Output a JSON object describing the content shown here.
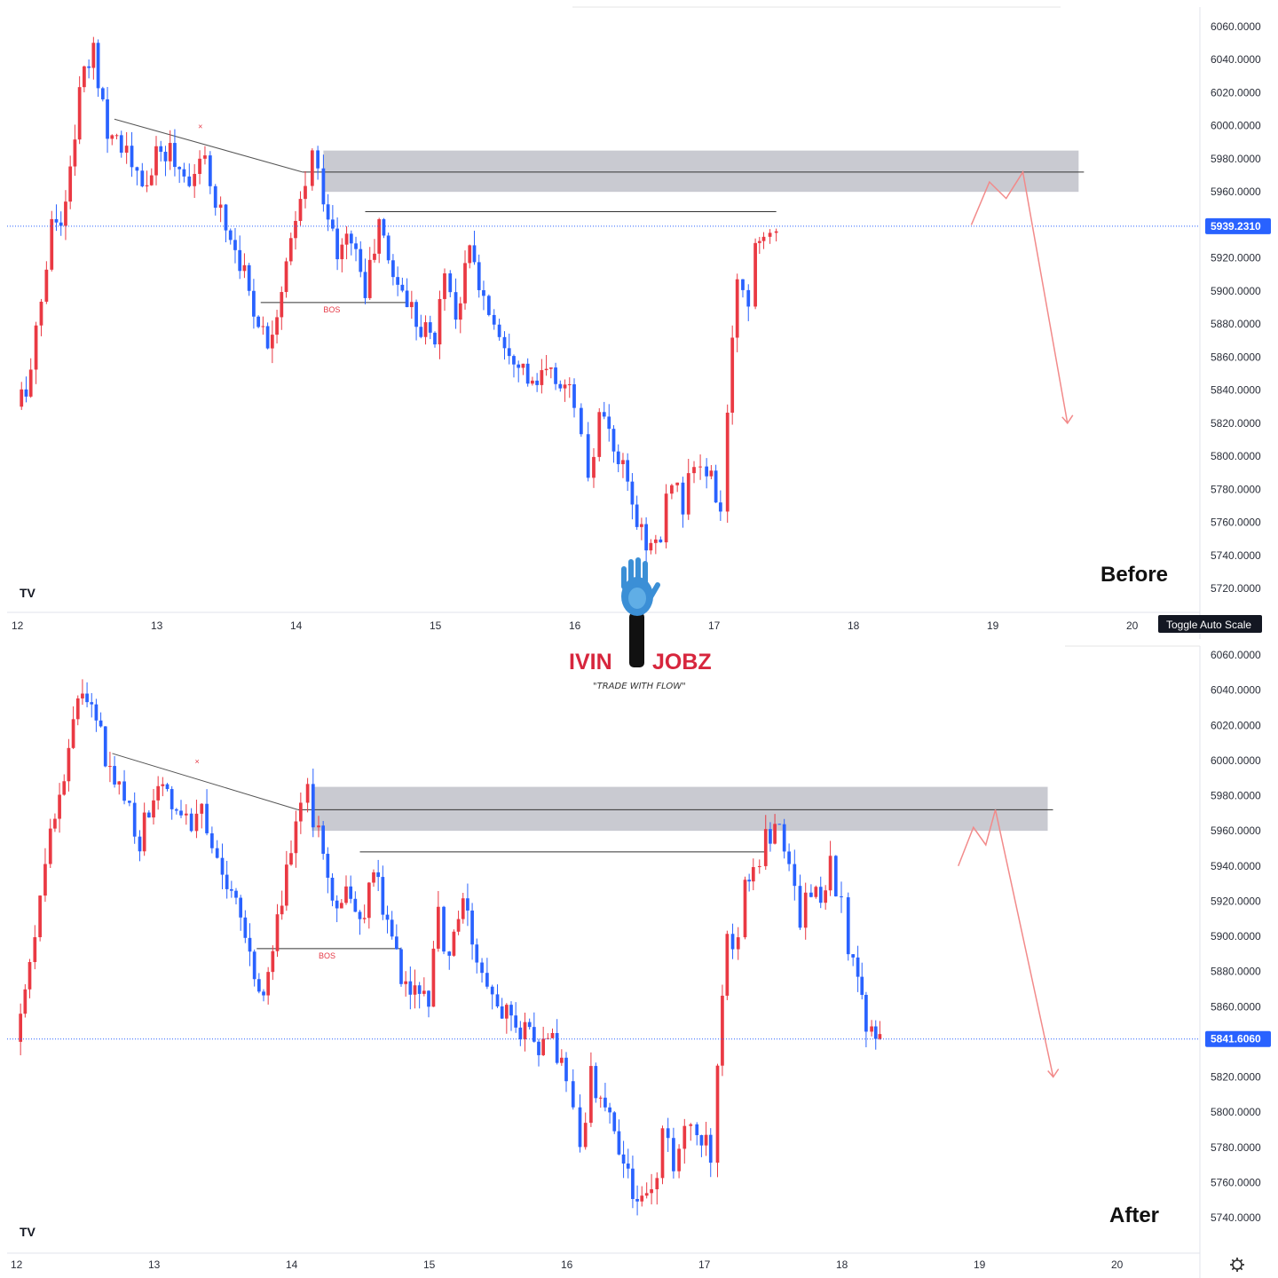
{
  "brand": {
    "name_left": "IVIN",
    "name_right": "JOBZ",
    "tagline": "\"TRADE WITH FLOW\"",
    "color": "#d7263d"
  },
  "colors": {
    "up": "#ea3943",
    "down": "#2962ff",
    "zone": "#c9cad1",
    "projection": "#f28a8a",
    "price_tag": "#2962ff"
  },
  "panels": [
    {
      "id": "before",
      "label": "Before",
      "toggle_label": "Toggle Auto Scale",
      "settings_icon": "",
      "tv_logo": "TV",
      "bos_label": "BOS",
      "cross_marker": "×",
      "current_price_label": "5939.2310",
      "current_price": 5939.231,
      "y_ticks": [
        "6060.0000",
        "6040.0000",
        "6020.0000",
        "6000.0000",
        "5980.0000",
        "5960.0000",
        "5920.0000",
        "5900.0000",
        "5880.0000",
        "5860.0000",
        "5840.0000",
        "5820.0000",
        "5800.0000",
        "5780.0000",
        "5760.0000",
        "5740.0000",
        "5720.0000"
      ],
      "x_ticks": [
        "12",
        "13",
        "14",
        "15",
        "16",
        "17",
        "18",
        "19",
        "20"
      ]
    },
    {
      "id": "after",
      "label": "After",
      "toggle_label": "",
      "settings_icon": "gear-icon",
      "tv_logo": "TV",
      "bos_label": "BOS",
      "cross_marker": "×",
      "current_price_label": "5841.6060",
      "current_price": 5841.606,
      "y_ticks": [
        "6060.0000",
        "6040.0000",
        "6020.0000",
        "6000.0000",
        "5980.0000",
        "5960.0000",
        "5940.0000",
        "5920.0000",
        "5900.0000",
        "5880.0000",
        "5860.0000",
        "5820.0000",
        "5800.0000",
        "5780.0000",
        "5760.0000",
        "5740.0000"
      ],
      "x_ticks": [
        "12",
        "13",
        "14",
        "15",
        "16",
        "17",
        "18",
        "19",
        "20"
      ]
    }
  ],
  "chart_data": [
    {
      "type": "candlestick",
      "title": "",
      "ylim": [
        5710,
        6070
      ],
      "xlim": [
        12,
        20
      ],
      "supply_zone": [
        5960,
        5985
      ],
      "resistance_level": 5972,
      "inner_high_level": 5948,
      "bos_level": 5893,
      "trendline": [
        [
          12.7,
          6004
        ],
        [
          14.05,
          5972
        ]
      ],
      "projection": [
        [
          18.85,
          5940
        ],
        [
          18.98,
          5966
        ],
        [
          19.1,
          5956
        ],
        [
          19.22,
          5972
        ],
        [
          19.54,
          5820
        ]
      ],
      "path": [
        [
          12.0,
          5830
        ],
        [
          12.1,
          5850
        ],
        [
          12.25,
          5940
        ],
        [
          12.35,
          5950
        ],
        [
          12.45,
          6020
        ],
        [
          12.55,
          6045
        ],
        [
          12.65,
          6000
        ],
        [
          12.75,
          5990
        ],
        [
          12.9,
          5960
        ],
        [
          13.0,
          5980
        ],
        [
          13.1,
          5985
        ],
        [
          13.2,
          5970
        ],
        [
          13.35,
          5975
        ],
        [
          13.5,
          5940
        ],
        [
          13.6,
          5920
        ],
        [
          13.7,
          5890
        ],
        [
          13.8,
          5870
        ],
        [
          13.9,
          5900
        ],
        [
          14.0,
          5940
        ],
        [
          14.07,
          5965
        ],
        [
          14.12,
          5982
        ],
        [
          14.2,
          5960
        ],
        [
          14.3,
          5920
        ],
        [
          14.4,
          5935
        ],
        [
          14.5,
          5900
        ],
        [
          14.6,
          5940
        ],
        [
          14.7,
          5910
        ],
        [
          14.8,
          5895
        ],
        [
          14.9,
          5880
        ],
        [
          15.0,
          5870
        ],
        [
          15.07,
          5915
        ],
        [
          15.15,
          5885
        ],
        [
          15.25,
          5925
        ],
        [
          15.35,
          5895
        ],
        [
          15.5,
          5870
        ],
        [
          15.6,
          5860
        ],
        [
          15.7,
          5840
        ],
        [
          15.8,
          5850
        ],
        [
          15.9,
          5845
        ],
        [
          16.0,
          5835
        ],
        [
          16.05,
          5810
        ],
        [
          16.1,
          5780
        ],
        [
          16.18,
          5825
        ],
        [
          16.25,
          5810
        ],
        [
          16.35,
          5790
        ],
        [
          16.45,
          5760
        ],
        [
          16.55,
          5745
        ],
        [
          16.62,
          5750
        ],
        [
          16.7,
          5790
        ],
        [
          16.78,
          5770
        ],
        [
          16.86,
          5795
        ],
        [
          16.95,
          5790
        ],
        [
          17.05,
          5770
        ],
        [
          17.1,
          5820
        ],
        [
          17.17,
          5910
        ],
        [
          17.25,
          5895
        ],
        [
          17.3,
          5930
        ],
        [
          17.36,
          5940
        ],
        [
          17.45,
          5943
        ]
      ]
    },
    {
      "type": "candlestick",
      "title": "",
      "ylim": [
        5725,
        6070
      ],
      "xlim": [
        12,
        20
      ],
      "supply_zone": [
        5960,
        5985
      ],
      "resistance_level": 5972,
      "inner_high_level": 5948,
      "bos_level": 5893,
      "trendline": [
        [
          12.7,
          6004
        ],
        [
          14.05,
          5972
        ]
      ],
      "projection": [
        [
          18.85,
          5940
        ],
        [
          18.96,
          5962
        ],
        [
          19.05,
          5952
        ],
        [
          19.12,
          5972
        ],
        [
          19.54,
          5820
        ]
      ],
      "path": [
        [
          12.0,
          5840
        ],
        [
          12.1,
          5880
        ],
        [
          12.25,
          5960
        ],
        [
          12.35,
          5985
        ],
        [
          12.45,
          6040
        ],
        [
          12.55,
          6035
        ],
        [
          12.65,
          6000
        ],
        [
          12.75,
          5990
        ],
        [
          12.9,
          5955
        ],
        [
          13.0,
          5980
        ],
        [
          13.1,
          5985
        ],
        [
          13.2,
          5965
        ],
        [
          13.35,
          5970
        ],
        [
          13.5,
          5935
        ],
        [
          13.6,
          5920
        ],
        [
          13.7,
          5885
        ],
        [
          13.8,
          5870
        ],
        [
          13.9,
          5910
        ],
        [
          14.0,
          5945
        ],
        [
          14.07,
          5970
        ],
        [
          14.12,
          5982
        ],
        [
          14.2,
          5955
        ],
        [
          14.3,
          5915
        ],
        [
          14.4,
          5930
        ],
        [
          14.5,
          5905
        ],
        [
          14.6,
          5940
        ],
        [
          14.7,
          5910
        ],
        [
          14.8,
          5880
        ],
        [
          14.9,
          5870
        ],
        [
          15.0,
          5865
        ],
        [
          15.07,
          5910
        ],
        [
          15.15,
          5885
        ],
        [
          15.25,
          5920
        ],
        [
          15.35,
          5890
        ],
        [
          15.5,
          5860
        ],
        [
          15.6,
          5850
        ],
        [
          15.7,
          5845
        ],
        [
          15.8,
          5840
        ],
        [
          15.9,
          5840
        ],
        [
          16.0,
          5820
        ],
        [
          16.05,
          5800
        ],
        [
          16.1,
          5780
        ],
        [
          16.18,
          5820
        ],
        [
          16.25,
          5810
        ],
        [
          16.35,
          5790
        ],
        [
          16.45,
          5760
        ],
        [
          16.55,
          5745
        ],
        [
          16.62,
          5750
        ],
        [
          16.7,
          5790
        ],
        [
          16.78,
          5770
        ],
        [
          16.86,
          5795
        ],
        [
          16.95,
          5790
        ],
        [
          17.05,
          5775
        ],
        [
          17.1,
          5820
        ],
        [
          17.17,
          5905
        ],
        [
          17.25,
          5895
        ],
        [
          17.3,
          5935
        ],
        [
          17.36,
          5940
        ],
        [
          17.45,
          5955
        ],
        [
          17.55,
          5968
        ],
        [
          17.62,
          5935
        ],
        [
          17.7,
          5910
        ],
        [
          17.78,
          5930
        ],
        [
          17.85,
          5915
        ],
        [
          17.92,
          5940
        ],
        [
          18.0,
          5915
        ],
        [
          18.05,
          5890
        ],
        [
          18.12,
          5870
        ],
        [
          18.18,
          5850
        ],
        [
          18.22,
          5842
        ],
        [
          18.28,
          5841
        ]
      ]
    }
  ]
}
